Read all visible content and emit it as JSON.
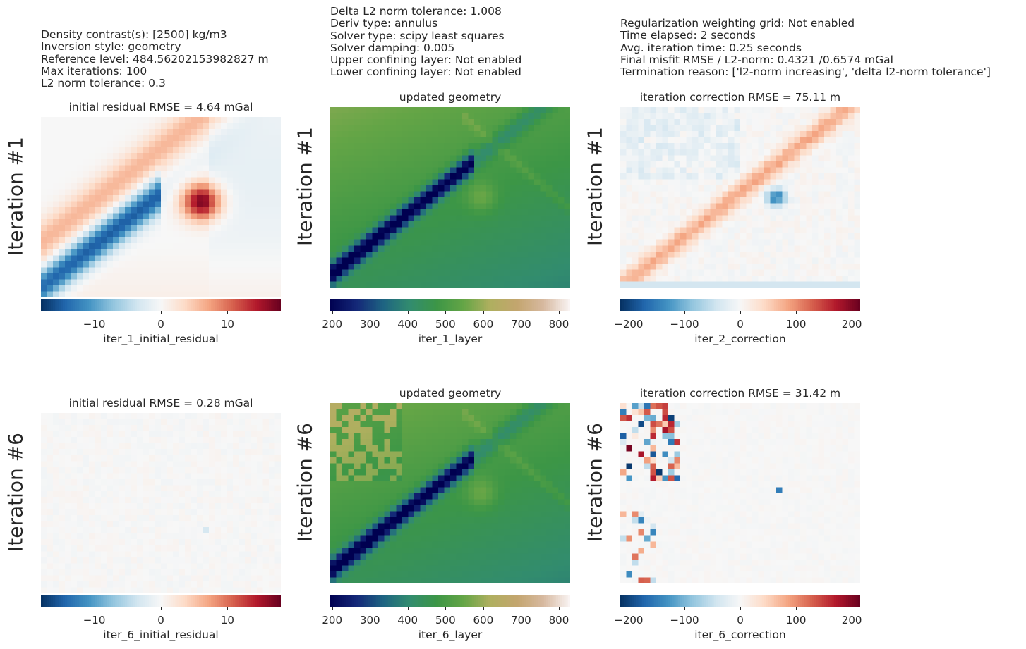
{
  "info": {
    "left": [
      "Density contrast(s): [2500] kg/m3",
      "Inversion style: geometry",
      "Reference level: 484.56202153982827 m",
      "Max iterations: 100",
      "L2 norm tolerance: 0.3"
    ],
    "middle": [
      "Delta L2 norm tolerance: 1.008",
      "Deriv type: annulus",
      "Solver type: scipy least squares",
      "Solver damping: 0.005",
      "Upper confining layer: Not enabled",
      "Lower confining layer: Not enabled"
    ],
    "right": [
      "Regularization weighting grid: Not enabled",
      "Time elapsed: 2 seconds",
      "Avg. iteration time: 0.25 seconds",
      "Final misfit RMSE / L2-norm: 0.4321 /0.6574 mGal",
      "Termination reason: ['l2-norm increasing', 'delta l2-norm tolerance']"
    ]
  },
  "rows": [
    {
      "label": "Iteration #1",
      "panels": [
        {
          "title": "initial residual RMSE = 4.64 mGal",
          "colorbar_label": "iter_1_initial_residual",
          "cmap": "RdBu_r",
          "range": [
            -18,
            18
          ],
          "ticks": [
            -10,
            0,
            10
          ],
          "tick_labels": [
            "−10",
            "0",
            "10"
          ],
          "pattern": "resid1"
        },
        {
          "title": "updated geometry",
          "colorbar_label": "iter_1_layer",
          "cmap": "gist_earth",
          "range": [
            195,
            830
          ],
          "ticks": [
            200,
            300,
            400,
            500,
            600,
            700,
            800
          ],
          "tick_labels": [
            "200",
            "300",
            "400",
            "500",
            "600",
            "700",
            "800"
          ],
          "pattern": "layer1"
        },
        {
          "title": "iteration correction RMSE = 75.11 m",
          "colorbar_label": "iter_2_correction",
          "cmap": "RdBu_r",
          "range": [
            -215,
            215
          ],
          "ticks": [
            -200,
            -100,
            0,
            100,
            200
          ],
          "tick_labels": [
            "−200",
            "−100",
            "0",
            "100",
            "200"
          ],
          "pattern": "corr1"
        }
      ]
    },
    {
      "label": "Iteration #6",
      "panels": [
        {
          "title": "initial residual RMSE = 0.28 mGal",
          "colorbar_label": "iter_6_initial_residual",
          "cmap": "RdBu_r",
          "range": [
            -18,
            18
          ],
          "ticks": [
            -10,
            0,
            10
          ],
          "tick_labels": [
            "−10",
            "0",
            "10"
          ],
          "pattern": "resid6"
        },
        {
          "title": "updated geometry",
          "colorbar_label": "iter_6_layer",
          "cmap": "gist_earth",
          "range": [
            195,
            830
          ],
          "ticks": [
            200,
            300,
            400,
            500,
            600,
            700,
            800
          ],
          "tick_labels": [
            "200",
            "300",
            "400",
            "500",
            "600",
            "700",
            "800"
          ],
          "pattern": "layer6"
        },
        {
          "title": "iteration correction RMSE = 31.42 m",
          "colorbar_label": "iter_6_correction",
          "cmap": "RdBu_r",
          "range": [
            -215,
            215
          ],
          "ticks": [
            -200,
            -100,
            0,
            100,
            200
          ],
          "tick_labels": [
            "−200",
            "−100",
            "0",
            "100",
            "200"
          ],
          "pattern": "corr6"
        }
      ]
    }
  ],
  "chart_data": {
    "type": "heatmap",
    "grid": {
      "nx": 40,
      "ny": 30
    },
    "colorbars": [
      {
        "label": "iter_1_initial_residual",
        "ticks": [
          -10,
          0,
          10
        ]
      },
      {
        "label": "iter_1_layer",
        "ticks": [
          200,
          300,
          400,
          500,
          600,
          700,
          800
        ]
      },
      {
        "label": "iter_2_correction",
        "ticks": [
          -200,
          -100,
          0,
          100,
          200
        ]
      },
      {
        "label": "iter_6_initial_residual",
        "ticks": [
          -10,
          0,
          10
        ]
      },
      {
        "label": "iter_6_layer",
        "ticks": [
          200,
          300,
          400,
          500,
          600,
          700,
          800
        ]
      },
      {
        "label": "iter_6_correction",
        "ticks": [
          -200,
          -100,
          0,
          100,
          200
        ]
      }
    ]
  }
}
